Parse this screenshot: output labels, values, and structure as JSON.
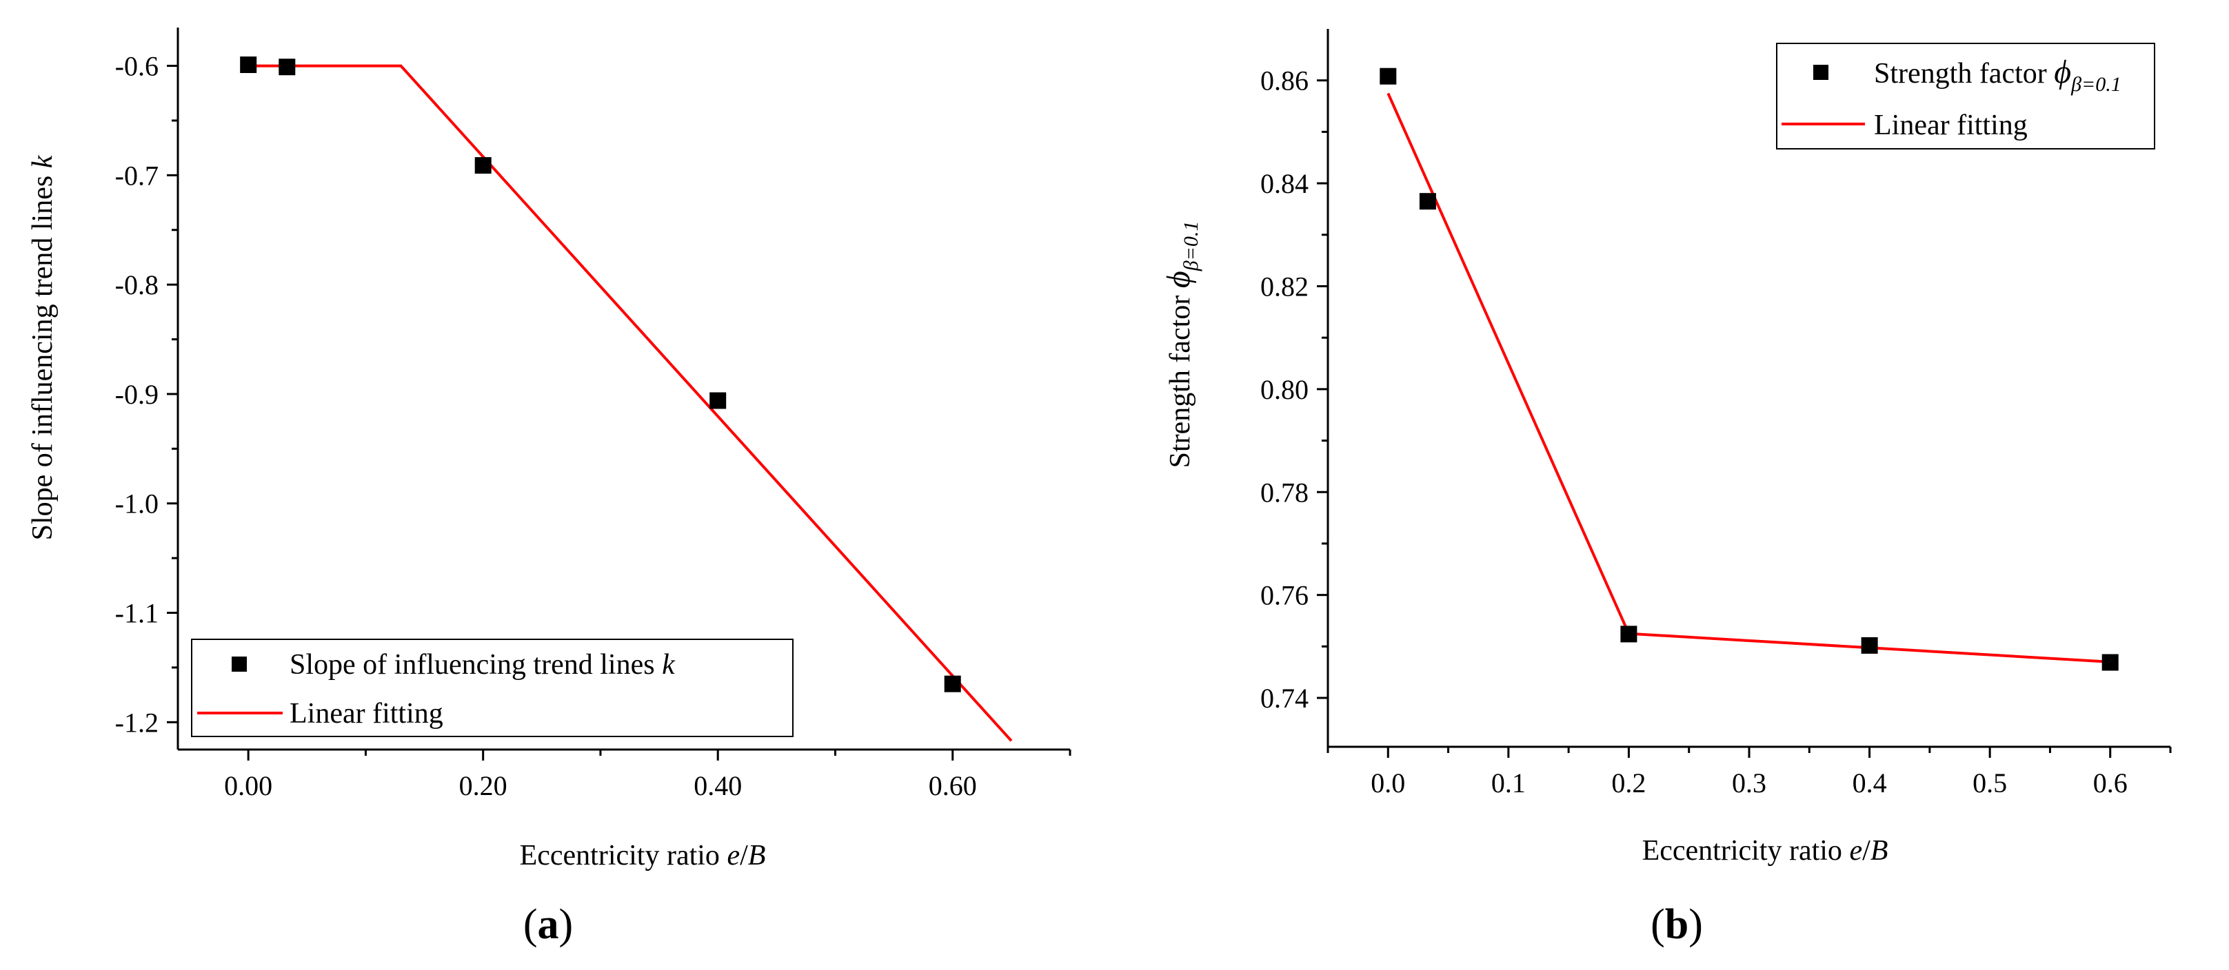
{
  "chart_data": [
    {
      "panel": "a",
      "panel_label_open": "(",
      "panel_label_letter": "a",
      "panel_label_close": ")",
      "type": "scatter",
      "xlabel_text": "Eccentricity ratio ",
      "xlabel_e": "e",
      "xlabel_slash": "/",
      "xlabel_B": "B",
      "ylabel_text": "Slope of influencing trend lines ",
      "ylabel_k": "k",
      "xlim": [
        -0.06,
        0.7
      ],
      "ylim": [
        -1.225,
        -0.565
      ],
      "xticks": [
        0.0,
        0.2,
        0.4,
        0.6
      ],
      "xticklabels": [
        "0.00",
        "0.20",
        "0.40",
        "0.60"
      ],
      "xminor": [
        0.1,
        0.3,
        0.5,
        0.7
      ],
      "yticks": [
        -0.6,
        -0.7,
        -0.8,
        -0.9,
        -1.0,
        -1.1,
        -1.2
      ],
      "yticklabels": [
        "-0.6",
        "-0.7",
        "-0.8",
        "-0.9",
        "-1.0",
        "-1.1",
        "-1.2"
      ],
      "yminor": [
        -0.65,
        -0.75,
        -0.85,
        -0.95,
        -1.05,
        -1.15
      ],
      "series": [
        {
          "name": "Slope of influencing trend lines k",
          "legend_text": "Slope of influencing trend lines ",
          "legend_italic": "k",
          "kind": "scatter",
          "color": "#000000",
          "x": [
            0.0,
            0.033,
            0.2,
            0.4,
            0.6
          ],
          "y": [
            -0.599,
            -0.601,
            -0.691,
            -0.906,
            -1.165
          ]
        },
        {
          "name": "Linear fitting",
          "legend_text": "Linear fitting",
          "kind": "line",
          "color": "#ff0000",
          "x": [
            0.0,
            0.13,
            0.65
          ],
          "y": [
            -0.6,
            -0.6,
            -1.217
          ]
        }
      ],
      "legend_position": "bottom-left"
    },
    {
      "panel": "b",
      "panel_label_open": "(",
      "panel_label_letter": "b",
      "panel_label_close": ")",
      "type": "scatter",
      "xlabel_text": "Eccentricity ratio ",
      "xlabel_e": "e",
      "xlabel_slash": "/",
      "xlabel_B": "B",
      "ylabel_text": "Strength factor ",
      "ylabel_phi": "ϕ",
      "ylabel_sub": "β=0.1",
      "xlim": [
        -0.05,
        0.65
      ],
      "ylim": [
        0.7305,
        0.87
      ],
      "xticks": [
        0.0,
        0.1,
        0.2,
        0.3,
        0.4,
        0.5,
        0.6
      ],
      "xticklabels": [
        "0.0",
        "0.1",
        "0.2",
        "0.3",
        "0.4",
        "0.5",
        "0.6"
      ],
      "xminor": [
        -0.05,
        0.05,
        0.15,
        0.25,
        0.35,
        0.45,
        0.55,
        0.65
      ],
      "yticks": [
        0.74,
        0.76,
        0.78,
        0.8,
        0.82,
        0.84,
        0.86
      ],
      "yticklabels": [
        "0.74",
        "0.76",
        "0.78",
        "0.80",
        "0.82",
        "0.84",
        "0.86"
      ],
      "yminor": [
        0.75,
        0.77,
        0.79,
        0.81,
        0.83,
        0.85
      ],
      "series": [
        {
          "name": "Strength factor ϕβ=0.1",
          "legend_text": "Strength factor ",
          "legend_phi": "ϕ",
          "legend_sub": "β=0.1",
          "kind": "scatter",
          "color": "#000000",
          "x": [
            0.0,
            0.033,
            0.2,
            0.4,
            0.6
          ],
          "y": [
            0.8608,
            0.8365,
            0.7524,
            0.7502,
            0.7469
          ]
        },
        {
          "name": "Linear fitting",
          "legend_text": "Linear fitting",
          "kind": "line",
          "color": "#ff0000",
          "x": [
            0.0,
            0.2,
            0.6
          ],
          "y": [
            0.8575,
            0.7525,
            0.747
          ]
        }
      ],
      "legend_position": "top-right"
    }
  ]
}
